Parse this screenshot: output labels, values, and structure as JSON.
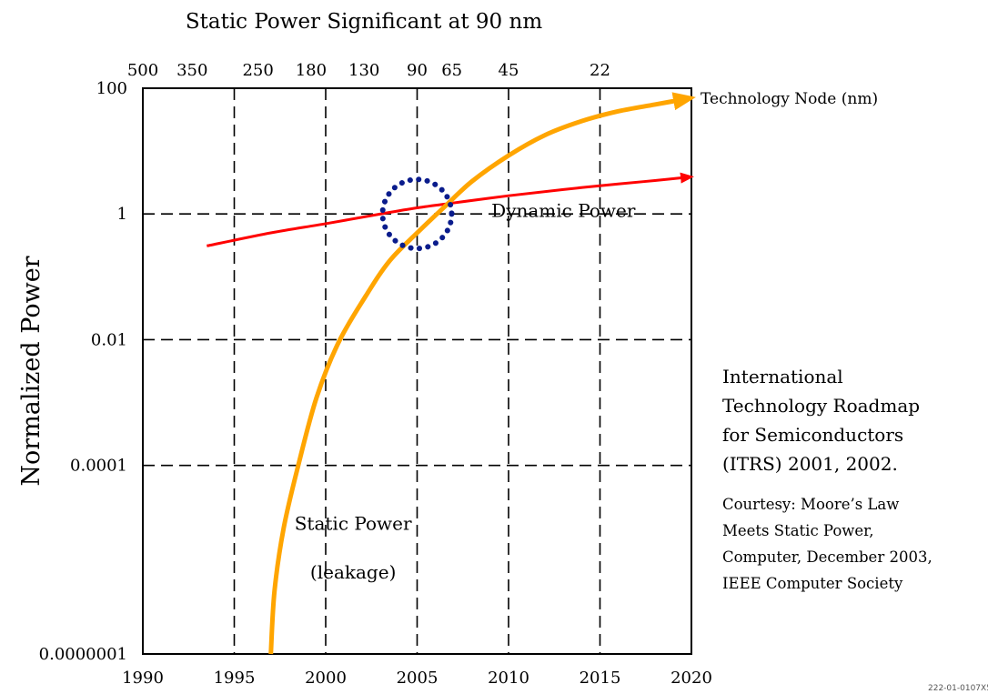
{
  "chart_data": {
    "type": "line",
    "title": "Static Power Significant at 90 nm",
    "xlabel": "",
    "ylabel": "Normalized Power",
    "y_scale": "log",
    "x_range": [
      1990,
      2020
    ],
    "y_range": [
      1e-07,
      100
    ],
    "x_ticks": [
      "1990",
      "1995",
      "2000",
      "2005",
      "2010",
      "2015",
      "2020"
    ],
    "x_tick_values": [
      1990,
      1995,
      2000,
      2005,
      2010,
      2015,
      2020
    ],
    "y_ticks": [
      "0.0000001",
      "0.0001",
      "0.01",
      "1",
      "100"
    ],
    "y_tick_values": [
      1e-07,
      0.0001,
      0.01,
      1,
      100
    ],
    "top_axis_label": "Technology Node (nm)",
    "top_ticks": [
      {
        "label": "500",
        "x": 1990
      },
      {
        "label": "350",
        "x": 1992.7
      },
      {
        "label": "250",
        "x": 1996.3
      },
      {
        "label": "180",
        "x": 1999.2
      },
      {
        "label": "130",
        "x": 2002.1
      },
      {
        "label": "90",
        "x": 2005
      },
      {
        "label": "65",
        "x": 2006.9
      },
      {
        "label": "45",
        "x": 2010
      },
      {
        "label": "22",
        "x": 2015
      }
    ],
    "grid": "dashed",
    "series": [
      {
        "name": "Dynamic Power",
        "color": "#ff0000",
        "x": [
          1993.5,
          1997,
          2000,
          2003,
          2005,
          2007,
          2010,
          2013,
          2016,
          2018,
          2020
        ],
        "y": [
          0.31,
          0.5,
          0.7,
          1.0,
          1.25,
          1.5,
          1.95,
          2.45,
          3.0,
          3.4,
          3.9
        ]
      },
      {
        "name": "Static Power (leakage)",
        "color": "#ffa500",
        "x": [
          1997,
          1997.2,
          1997.7,
          1998.5,
          1999.5,
          2000.7,
          2002.2,
          2003.5,
          2005,
          2006.5,
          2008,
          2010,
          2012,
          2014,
          2016,
          2018,
          2020
        ],
        "y": [
          1e-07,
          1e-06,
          1e-05,
          0.0001,
          0.0012,
          0.009,
          0.05,
          0.18,
          0.5,
          1.3,
          3.3,
          8.5,
          18,
          30,
          43,
          55,
          70
        ]
      }
    ],
    "annotations": [
      {
        "id": "dynamic",
        "text": "Dynamic Power",
        "x": 2013,
        "y": 0.9
      },
      {
        "id": "static1",
        "text": "Static Power",
        "x": 2001.5,
        "y": 9.5e-06
      },
      {
        "id": "static2",
        "text": "(leakage)",
        "x": 2001.5,
        "y": 1.6e-06
      }
    ],
    "highlight_circle": {
      "x": 2005,
      "y": 1,
      "color": "#0a1c8c"
    }
  },
  "notes": {
    "citation_lines": [
      "International",
      "Technology Roadmap",
      "for Semiconductors",
      "(ITRS) 2001, 2002."
    ],
    "courtesy_lines": [
      "Courtesy: Moore’s Law",
      "Meets Static Power,",
      "Computer, December 2003,",
      "IEEE Computer Society"
    ],
    "corner_tag": "222-01-0107X5"
  }
}
